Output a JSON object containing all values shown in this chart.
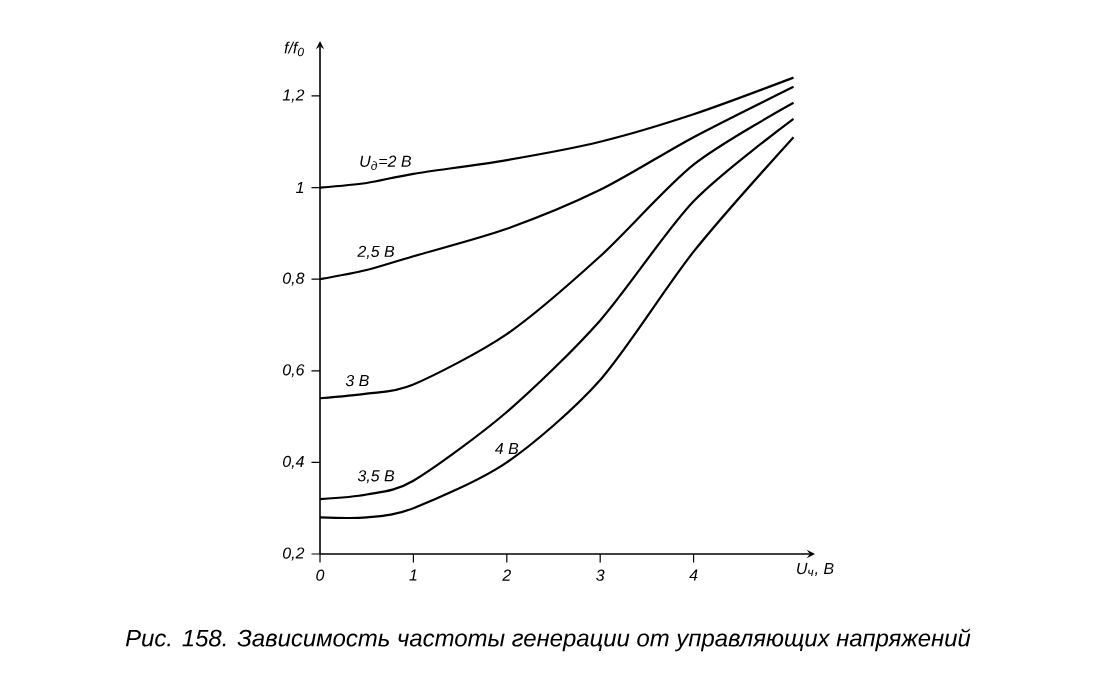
{
  "chart_data": {
    "type": "line",
    "title": "Рис. 158. Зависимость частоты генерации от управляющих напряжений",
    "xlabel": "U$_{ч}$, В",
    "ylabel": "f/f$_{0}$",
    "x": [
      0,
      0.5,
      1,
      2,
      3,
      4,
      5.07
    ],
    "series": [
      {
        "color": "#000000",
        "values": [
          1.0,
          1.01,
          1.03,
          1.06,
          1.1,
          1.16,
          1.24
        ]
      },
      {
        "color": "#000000",
        "values": [
          0.8,
          0.82,
          0.85,
          0.91,
          0.995,
          1.11,
          1.22
        ]
      },
      {
        "color": "#000000",
        "values": [
          0.54,
          0.55,
          0.57,
          0.68,
          0.85,
          1.05,
          1.185
        ]
      },
      {
        "color": "#000000",
        "values": [
          0.32,
          0.33,
          0.36,
          0.51,
          0.71,
          0.97,
          1.15
        ]
      },
      {
        "color": "#000000",
        "values": [
          0.28,
          0.28,
          0.3,
          0.4,
          0.58,
          0.86,
          1.11
        ]
      }
    ],
    "xlim": [
      0,
      5.3
    ],
    "ylim": [
      0.2,
      1.32
    ],
    "xticks": [
      0,
      1,
      2,
      3,
      4
    ],
    "yticks": [
      {
        "value": 0.2,
        "label": "0,2"
      },
      {
        "value": 0.4,
        "label": "0,4"
      },
      {
        "value": 0.6,
        "label": "0,6"
      },
      {
        "value": 0.8,
        "label": "0,8"
      },
      1,
      {
        "value": 1.2,
        "label": "1,2"
      }
    ],
    "line_style": "solid",
    "marker": "none",
    "grid": false,
    "annotations": [
      {
        "text": "U$_{д}$=2 В",
        "x": 0.7,
        "y": 1.02
      },
      {
        "text": "2,5 В",
        "x": 0.6,
        "y": 0.826
      },
      {
        "text": "3 В",
        "x": 0.4,
        "y": 0.548
      },
      {
        "text": "3,5 В",
        "x": 0.6,
        "y": 0.336
      },
      {
        "text": "4 В",
        "x": 2.0,
        "y": 0.4
      }
    ]
  }
}
